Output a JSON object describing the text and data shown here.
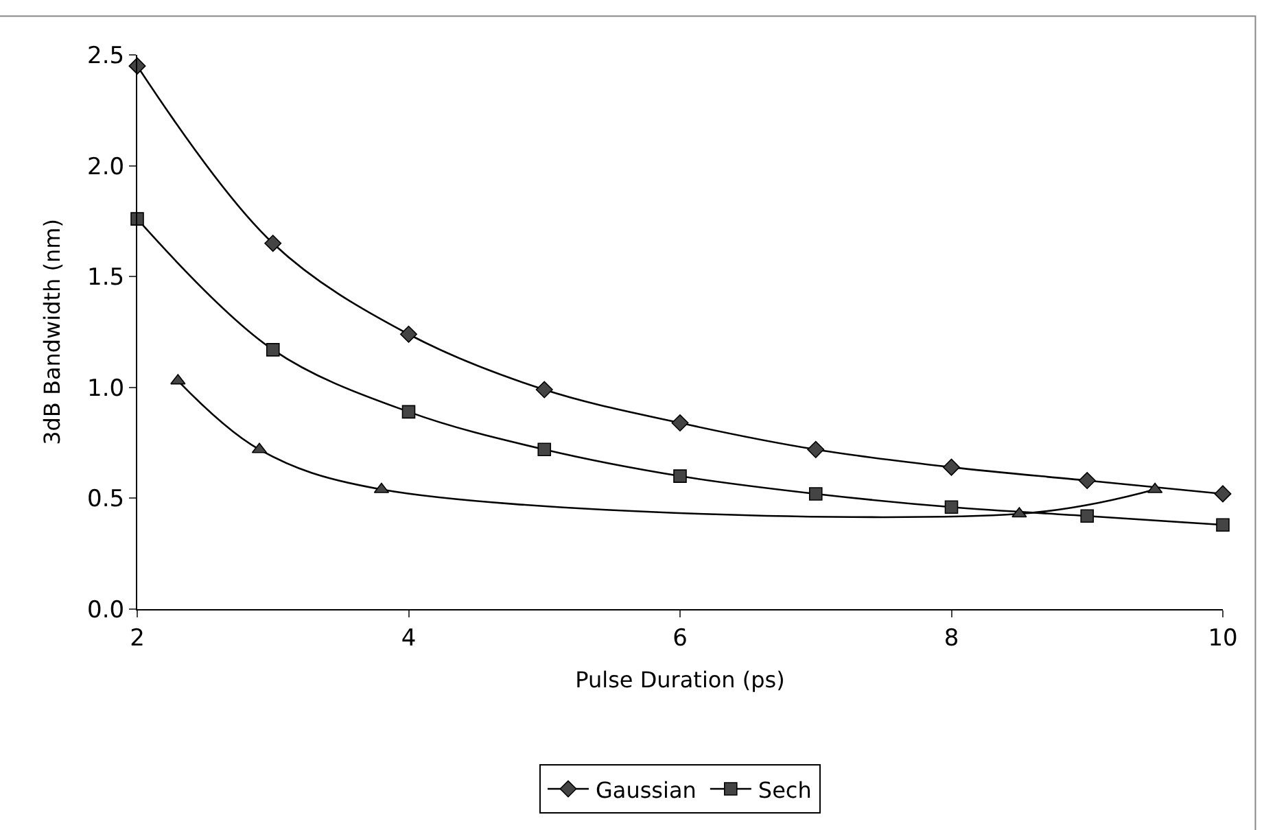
{
  "chart_data": {
    "type": "line",
    "xlabel": "Pulse Duration (ps)",
    "ylabel": "3dB Bandwidth (nm)",
    "xlim": [
      2,
      10
    ],
    "xticks": [
      2,
      4,
      6,
      8,
      10
    ],
    "ylim": [
      0,
      2.5
    ],
    "yticks": [
      {
        "value": 0,
        "label": "0.0"
      },
      {
        "value": 0.5,
        "label": "0.5"
      },
      {
        "value": 1,
        "label": "1.0"
      },
      {
        "value": 1.5,
        "label": "1.5"
      },
      {
        "value": 2,
        "label": "2.0"
      },
      {
        "value": 2.5,
        "label": "2.5"
      }
    ],
    "legend": "bottom",
    "series": [
      {
        "name": "Gaussian",
        "color": "#444444",
        "marker": "diamond",
        "x": [
          2,
          3,
          4,
          5,
          6,
          7,
          8,
          9,
          10
        ],
        "values": [
          2.45,
          1.65,
          1.24,
          0.99,
          0.84,
          0.72,
          0.64,
          0.58,
          0.52
        ]
      },
      {
        "name": "Sech",
        "color": "#444444",
        "marker": "square",
        "x": [
          2,
          3,
          4,
          5,
          6,
          7,
          8,
          9,
          10
        ],
        "values": [
          1.76,
          1.17,
          0.89,
          0.72,
          0.6,
          0.52,
          0.46,
          0.42,
          0.38
        ]
      },
      {
        "color": "#444444",
        "marker": "triangle",
        "x": [
          2.3,
          2.9,
          3.8,
          8.5,
          9.5
        ],
        "values": [
          1.03,
          0.72,
          0.54,
          0.43,
          0.54
        ]
      }
    ]
  }
}
